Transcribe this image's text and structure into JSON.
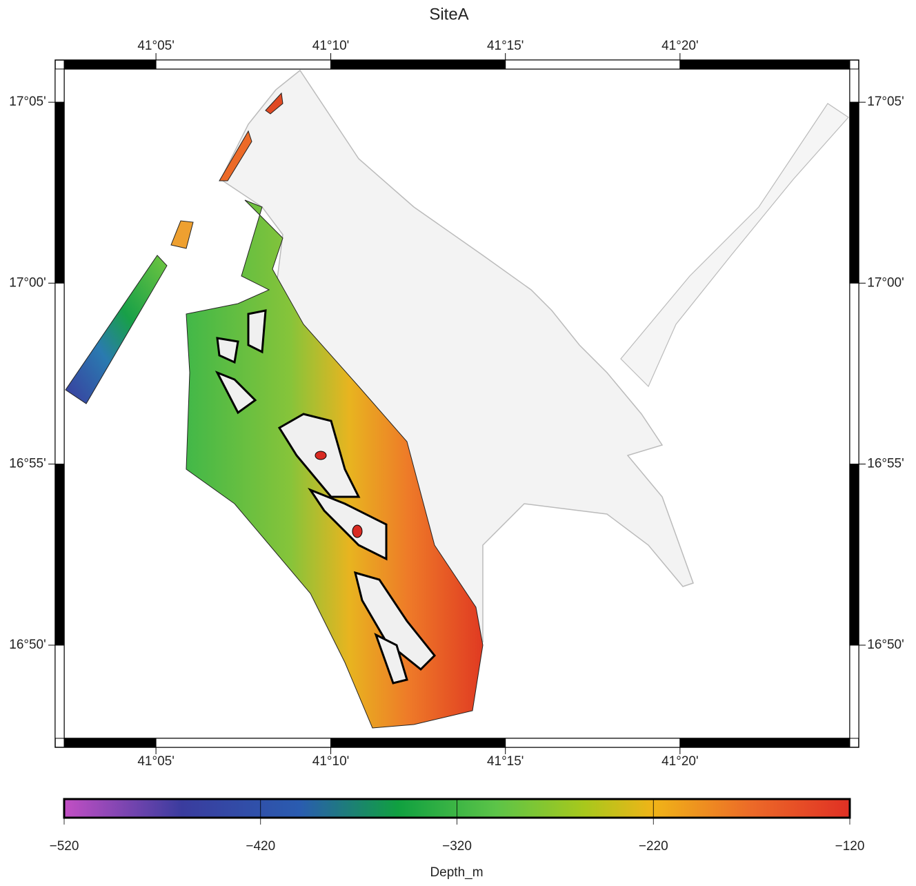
{
  "title": "SiteA",
  "map": {
    "lonlim": [
      41.0395,
      41.4143
    ],
    "latlim": [
      16.7904,
      17.0986
    ],
    "lon_ticks": [
      {
        "value": 41.0833,
        "label": "41°05'"
      },
      {
        "value": 41.1667,
        "label": "41°10'"
      },
      {
        "value": 41.25,
        "label": "41°15'"
      },
      {
        "value": 41.3333,
        "label": "41°20'"
      }
    ],
    "lat_ticks": [
      {
        "value": 17.0833,
        "label": "17°05'"
      },
      {
        "value": 17.0,
        "label": "17°00'"
      },
      {
        "value": 16.9167,
        "label": "16°55'"
      },
      {
        "value": 16.8333,
        "label": "16°50'"
      }
    ]
  },
  "colorbar": {
    "label": "Depth_m",
    "lim": [
      -520,
      -120
    ],
    "ticks": [
      {
        "value": -520,
        "label": "−520"
      },
      {
        "value": -420,
        "label": "−420"
      },
      {
        "value": -320,
        "label": "−320"
      },
      {
        "value": -220,
        "label": "−220"
      },
      {
        "value": -120,
        "label": "−120"
      }
    ],
    "colormap": [
      {
        "value": -520,
        "color": "#c24fc4"
      },
      {
        "value": -460,
        "color": "#3a3c9e"
      },
      {
        "value": -400,
        "color": "#2a5cb0"
      },
      {
        "value": -350,
        "color": "#10a040"
      },
      {
        "value": -300,
        "color": "#5cc448"
      },
      {
        "value": -255,
        "color": "#a8c81c"
      },
      {
        "value": -220,
        "color": "#f0b418"
      },
      {
        "value": -170,
        "color": "#ec6a28"
      },
      {
        "value": -120,
        "color": "#e03024"
      }
    ]
  }
}
